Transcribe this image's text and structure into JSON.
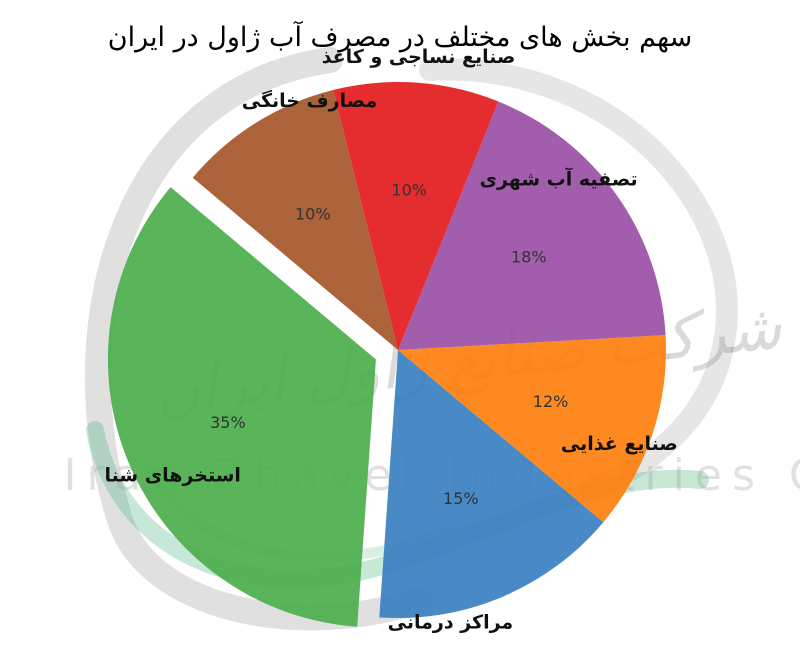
{
  "chart_data": {
    "type": "pie",
    "title": "سهم بخش های مختلف در مصرف آب ژاول در ایران",
    "categories": [
      "استخرهای شنا",
      "مراکز درمانی",
      "صنایع غذایی",
      "تصفیه آب شهری",
      "صنایع نساجی و کاغذ",
      "مصارف خانگی"
    ],
    "values": [
      35,
      15,
      12,
      18,
      10,
      10
    ],
    "value_labels": [
      "35%",
      "15%",
      "12%",
      "18%",
      "10%",
      "10%"
    ],
    "colors": [
      "#4cae4c",
      "#3a7fc0",
      "#ff7f0e",
      "#9a4fa6",
      "#e31a1c",
      "#a65628"
    ],
    "exploded": [
      "استخرهای شنا"
    ],
    "legend": "none"
  },
  "watermark": {
    "latin": "Iran Zhavel Industries Co",
    "persian": "شرکت صنایع ژاول ایران"
  }
}
